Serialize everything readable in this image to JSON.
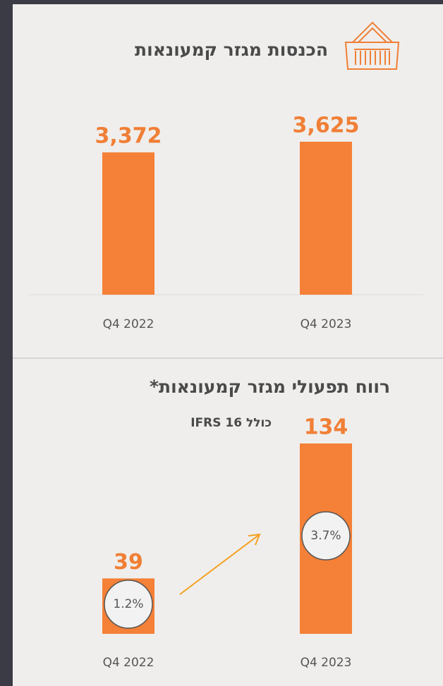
{
  "chart_data": [
    {
      "type": "bar",
      "title": "הכנסות מגזר קמעונאות",
      "categories": [
        "Q4 2022",
        "Q4 2023"
      ],
      "values": [
        3372,
        3625
      ],
      "value_labels": [
        "3,372",
        "3,625"
      ],
      "color": "#f58037"
    },
    {
      "type": "bar",
      "title": "רווח תפעולי מגזר קמעונאות*",
      "subtitle": "כולל IFRS 16",
      "categories": [
        "Q4 2022",
        "Q4 2023"
      ],
      "values": [
        39,
        134
      ],
      "color": "#f58037",
      "margins": [
        1.2,
        3.7
      ],
      "margin_labels": [
        "1.2%",
        "3.7%"
      ]
    }
  ]
}
